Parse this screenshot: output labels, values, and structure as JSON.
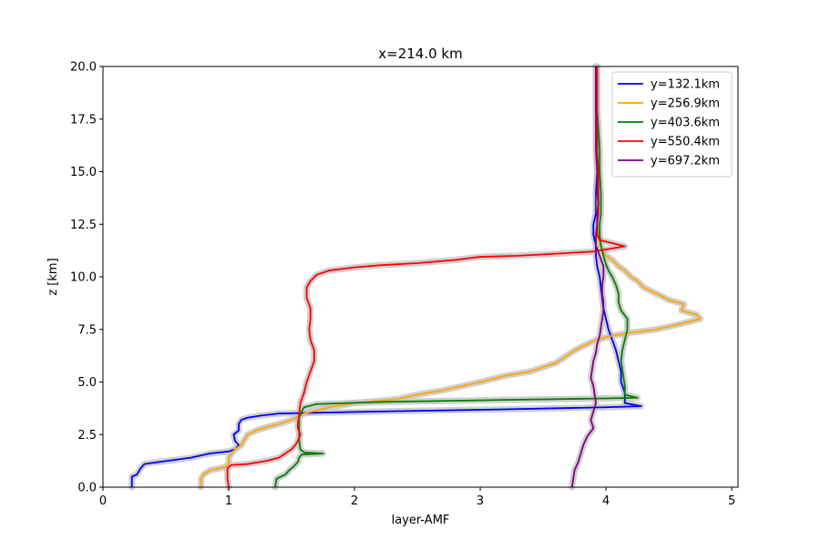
{
  "chart_data": {
    "type": "line",
    "title": "x=214.0 km",
    "xlabel": "layer-AMF",
    "ylabel": "z [km]",
    "xlim": [
      0,
      5.05
    ],
    "ylim": [
      0,
      20
    ],
    "xticks": [
      "0",
      "1",
      "2",
      "3",
      "4",
      "5"
    ],
    "yticks": [
      "0.0",
      "2.5",
      "5.0",
      "7.5",
      "10.0",
      "12.5",
      "15.0",
      "17.5",
      "20.0"
    ],
    "legend_position": "top-right",
    "grid": false,
    "uncertainty_band_color": "#c8c8c8",
    "series": [
      {
        "name": "y=132.1km",
        "color": "#0000ff",
        "points": [
          [
            0.23,
            0
          ],
          [
            0.23,
            0.5
          ],
          [
            0.27,
            0.6
          ],
          [
            0.3,
            0.9
          ],
          [
            0.33,
            1.1
          ],
          [
            0.45,
            1.2
          ],
          [
            0.7,
            1.4
          ],
          [
            0.85,
            1.6
          ],
          [
            1.0,
            1.7
          ],
          [
            1.05,
            1.8
          ],
          [
            1.08,
            2.0
          ],
          [
            1.05,
            2.2
          ],
          [
            1.04,
            2.5
          ],
          [
            1.08,
            2.7
          ],
          [
            1.08,
            3.0
          ],
          [
            1.1,
            3.2
          ],
          [
            1.15,
            3.3
          ],
          [
            1.25,
            3.4
          ],
          [
            1.4,
            3.5
          ],
          [
            2.2,
            3.6
          ],
          [
            3.2,
            3.7
          ],
          [
            4.0,
            3.8
          ],
          [
            4.28,
            3.85
          ],
          [
            4.15,
            4.0
          ],
          [
            4.15,
            4.5
          ],
          [
            4.12,
            5.0
          ],
          [
            4.12,
            5.5
          ],
          [
            4.1,
            6.0
          ],
          [
            4.08,
            6.5
          ],
          [
            4.05,
            7.0
          ],
          [
            4.02,
            7.5
          ],
          [
            4.0,
            8.0
          ],
          [
            3.98,
            8.5
          ],
          [
            3.97,
            9.0
          ],
          [
            3.96,
            9.5
          ],
          [
            3.95,
            10.0
          ],
          [
            3.93,
            10.5
          ],
          [
            3.92,
            11.0
          ],
          [
            3.92,
            11.5
          ],
          [
            3.9,
            12.0
          ],
          [
            3.9,
            12.5
          ],
          [
            3.92,
            13.0
          ],
          [
            3.92,
            14.0
          ],
          [
            3.93,
            15.0
          ],
          [
            3.93,
            16.0
          ],
          [
            3.93,
            17.0
          ],
          [
            3.92,
            18.0
          ],
          [
            3.92,
            19.0
          ],
          [
            3.92,
            20.0
          ]
        ]
      },
      {
        "name": "y=256.9km",
        "color": "#ffa500",
        "points": [
          [
            0.78,
            0
          ],
          [
            0.78,
            0.4
          ],
          [
            0.8,
            0.6
          ],
          [
            0.85,
            0.8
          ],
          [
            0.97,
            0.95
          ],
          [
            1.0,
            1.1
          ],
          [
            1.0,
            1.4
          ],
          [
            1.02,
            1.6
          ],
          [
            1.05,
            1.8
          ],
          [
            1.1,
            2.0
          ],
          [
            1.12,
            2.2
          ],
          [
            1.15,
            2.5
          ],
          [
            1.22,
            2.7
          ],
          [
            1.3,
            2.85
          ],
          [
            1.4,
            3.0
          ],
          [
            1.5,
            3.2
          ],
          [
            1.6,
            3.5
          ],
          [
            1.8,
            3.8
          ],
          [
            2.0,
            4.0
          ],
          [
            2.2,
            4.1
          ],
          [
            2.35,
            4.2
          ],
          [
            2.5,
            4.4
          ],
          [
            2.7,
            4.6
          ],
          [
            2.85,
            4.8
          ],
          [
            3.0,
            5.0
          ],
          [
            3.2,
            5.3
          ],
          [
            3.4,
            5.5
          ],
          [
            3.6,
            5.9
          ],
          [
            3.7,
            6.3
          ],
          [
            3.75,
            6.5
          ],
          [
            3.85,
            6.8
          ],
          [
            3.92,
            7.0
          ],
          [
            4.05,
            7.2
          ],
          [
            4.2,
            7.35
          ],
          [
            4.4,
            7.5
          ],
          [
            4.55,
            7.7
          ],
          [
            4.75,
            8.0
          ],
          [
            4.72,
            8.2
          ],
          [
            4.6,
            8.4
          ],
          [
            4.62,
            8.7
          ],
          [
            4.5,
            8.9
          ],
          [
            4.4,
            9.2
          ],
          [
            4.3,
            9.5
          ],
          [
            4.25,
            9.8
          ],
          [
            4.2,
            10.0
          ],
          [
            4.15,
            10.3
          ],
          [
            4.1,
            10.5
          ],
          [
            4.05,
            10.8
          ],
          [
            4.0,
            11.0
          ],
          [
            3.98,
            11.2
          ],
          [
            3.95,
            11.5
          ],
          [
            3.94,
            12.0
          ],
          [
            3.93,
            12.5
          ],
          [
            3.93,
            13.0
          ],
          [
            3.93,
            14.0
          ],
          [
            3.93,
            15.0
          ],
          [
            3.93,
            16.0
          ],
          [
            3.93,
            17.0
          ],
          [
            3.93,
            18.0
          ],
          [
            3.93,
            19.0
          ],
          [
            3.93,
            20.0
          ]
        ]
      },
      {
        "name": "y=403.6km",
        "color": "#008000",
        "points": [
          [
            1.37,
            0
          ],
          [
            1.38,
            0.4
          ],
          [
            1.45,
            0.6
          ],
          [
            1.48,
            0.8
          ],
          [
            1.52,
            1.0
          ],
          [
            1.55,
            1.2
          ],
          [
            1.56,
            1.4
          ],
          [
            1.58,
            1.55
          ],
          [
            1.75,
            1.6
          ],
          [
            1.6,
            1.65
          ],
          [
            1.57,
            1.8
          ],
          [
            1.56,
            2.2
          ],
          [
            1.56,
            2.6
          ],
          [
            1.56,
            3.0
          ],
          [
            1.56,
            3.3
          ],
          [
            1.58,
            3.6
          ],
          [
            1.6,
            3.8
          ],
          [
            1.7,
            3.95
          ],
          [
            2.2,
            4.05
          ],
          [
            3.2,
            4.15
          ],
          [
            4.0,
            4.22
          ],
          [
            4.25,
            4.25
          ],
          [
            4.15,
            4.4
          ],
          [
            4.15,
            4.8
          ],
          [
            4.14,
            5.2
          ],
          [
            4.13,
            5.6
          ],
          [
            4.12,
            6.0
          ],
          [
            4.13,
            6.5
          ],
          [
            4.15,
            7.0
          ],
          [
            4.17,
            7.5
          ],
          [
            4.17,
            8.0
          ],
          [
            4.12,
            8.4
          ],
          [
            4.1,
            8.8
          ],
          [
            4.1,
            9.2
          ],
          [
            4.08,
            9.6
          ],
          [
            4.05,
            10.0
          ],
          [
            4.02,
            10.3
          ],
          [
            4.0,
            10.6
          ],
          [
            3.98,
            11.0
          ],
          [
            3.96,
            11.5
          ],
          [
            3.95,
            12.0
          ],
          [
            3.95,
            12.5
          ],
          [
            3.96,
            13.0
          ],
          [
            3.96,
            14.0
          ],
          [
            3.95,
            15.0
          ],
          [
            3.95,
            16.0
          ],
          [
            3.94,
            17.0
          ],
          [
            3.93,
            18.0
          ],
          [
            3.93,
            19.0
          ],
          [
            3.93,
            20.0
          ]
        ]
      },
      {
        "name": "y=550.4km",
        "color": "#ff0000",
        "points": [
          [
            1.0,
            0
          ],
          [
            0.99,
            0.4
          ],
          [
            0.99,
            0.7
          ],
          [
            0.99,
            0.9
          ],
          [
            1.02,
            1.05
          ],
          [
            1.15,
            1.1
          ],
          [
            1.3,
            1.25
          ],
          [
            1.4,
            1.4
          ],
          [
            1.45,
            1.6
          ],
          [
            1.5,
            1.8
          ],
          [
            1.53,
            2.0
          ],
          [
            1.55,
            2.2
          ],
          [
            1.57,
            2.5
          ],
          [
            1.55,
            2.8
          ],
          [
            1.55,
            3.0
          ],
          [
            1.56,
            3.5
          ],
          [
            1.57,
            4.0
          ],
          [
            1.6,
            4.5
          ],
          [
            1.62,
            5.0
          ],
          [
            1.65,
            5.5
          ],
          [
            1.68,
            6.0
          ],
          [
            1.68,
            6.5
          ],
          [
            1.65,
            7.0
          ],
          [
            1.64,
            7.5
          ],
          [
            1.65,
            8.0
          ],
          [
            1.65,
            8.5
          ],
          [
            1.62,
            9.0
          ],
          [
            1.62,
            9.5
          ],
          [
            1.65,
            9.8
          ],
          [
            1.7,
            10.1
          ],
          [
            1.8,
            10.3
          ],
          [
            2.0,
            10.45
          ],
          [
            2.2,
            10.55
          ],
          [
            2.5,
            10.65
          ],
          [
            2.8,
            10.8
          ],
          [
            3.0,
            10.95
          ],
          [
            3.3,
            11.0
          ],
          [
            3.6,
            11.1
          ],
          [
            3.9,
            11.2
          ],
          [
            4.15,
            11.45
          ],
          [
            4.05,
            11.6
          ],
          [
            3.95,
            11.75
          ],
          [
            3.93,
            12.0
          ],
          [
            3.93,
            12.5
          ],
          [
            3.94,
            13.0
          ],
          [
            3.94,
            14.0
          ],
          [
            3.94,
            15.0
          ],
          [
            3.93,
            16.0
          ],
          [
            3.93,
            17.0
          ],
          [
            3.93,
            18.0
          ],
          [
            3.93,
            19.0
          ],
          [
            3.93,
            20.0
          ]
        ]
      },
      {
        "name": "y=697.2km",
        "color": "#800080",
        "points": [
          [
            3.73,
            0
          ],
          [
            3.74,
            0.4
          ],
          [
            3.75,
            0.8
          ],
          [
            3.78,
            1.2
          ],
          [
            3.8,
            1.6
          ],
          [
            3.82,
            2.0
          ],
          [
            3.85,
            2.4
          ],
          [
            3.9,
            2.8
          ],
          [
            3.88,
            3.2
          ],
          [
            3.9,
            3.6
          ],
          [
            3.92,
            4.0
          ],
          [
            3.91,
            4.4
          ],
          [
            3.9,
            4.8
          ],
          [
            3.88,
            5.2
          ],
          [
            3.89,
            5.6
          ],
          [
            3.9,
            6.0
          ],
          [
            3.92,
            6.4
          ],
          [
            3.93,
            6.8
          ],
          [
            3.95,
            7.2
          ],
          [
            3.96,
            7.6
          ],
          [
            3.97,
            8.0
          ],
          [
            3.98,
            8.4
          ],
          [
            3.98,
            8.8
          ],
          [
            3.97,
            9.2
          ],
          [
            3.97,
            9.6
          ],
          [
            3.98,
            10.0
          ],
          [
            3.98,
            10.5
          ],
          [
            3.95,
            11.0
          ],
          [
            3.92,
            11.5
          ],
          [
            3.92,
            12.0
          ],
          [
            3.93,
            12.5
          ],
          [
            3.93,
            13.0
          ],
          [
            3.94,
            13.5
          ],
          [
            3.93,
            14.0
          ],
          [
            3.93,
            15.0
          ],
          [
            3.92,
            16.0
          ],
          [
            3.92,
            17.0
          ],
          [
            3.92,
            18.0
          ],
          [
            3.92,
            19.0
          ],
          [
            3.92,
            20.0
          ]
        ]
      }
    ]
  }
}
